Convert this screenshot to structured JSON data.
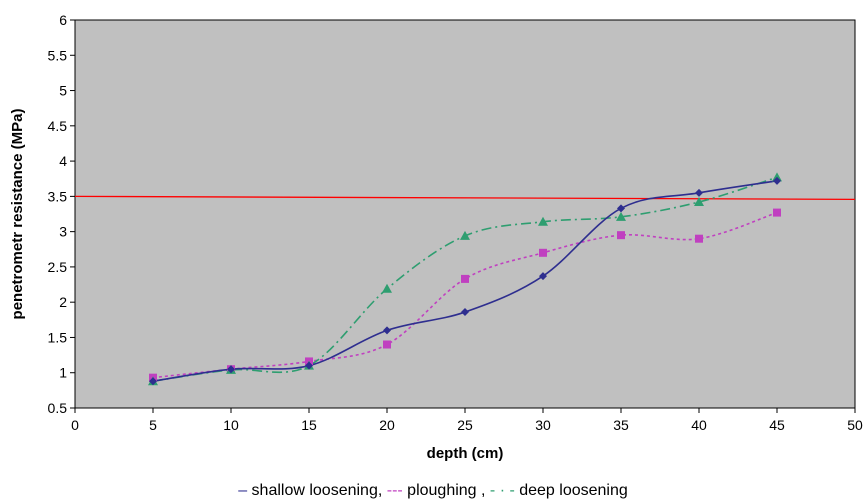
{
  "chart_data": {
    "type": "line",
    "title": "",
    "xlabel": "depth (cm)",
    "ylabel": "penetrometr resistance (MPa)",
    "xlim": [
      0,
      50
    ],
    "ylim": [
      0.5,
      6
    ],
    "xticks": [
      "0",
      "5",
      "10",
      "15",
      "20",
      "25",
      "30",
      "35",
      "40",
      "45",
      "50"
    ],
    "yticks": [
      "0.5",
      "1",
      "1.5",
      "2",
      "2.5",
      "3",
      "3.5",
      "4",
      "4.5",
      "5",
      "5.5",
      "6"
    ],
    "grid": false,
    "background": "#c0c0c0",
    "x": [
      5,
      10,
      15,
      20,
      25,
      30,
      35,
      40,
      45
    ],
    "series": [
      {
        "name": "shallow loosening",
        "color": "#2e2e8f",
        "marker": "diamond",
        "dash": "solid",
        "values": [
          0.88,
          1.05,
          1.1,
          1.6,
          1.86,
          2.37,
          3.33,
          3.55,
          3.72
        ]
      },
      {
        "name": "ploughing",
        "color": "#c040c0",
        "marker": "square",
        "dash": "dotted",
        "values": [
          0.93,
          1.05,
          1.16,
          1.4,
          2.33,
          2.7,
          2.95,
          2.9,
          3.27
        ]
      },
      {
        "name": "deep loosening",
        "color": "#2e9e70",
        "marker": "triangle",
        "dash": "dashdot",
        "values": [
          0.88,
          1.04,
          1.1,
          2.19,
          2.94,
          3.14,
          3.21,
          3.42,
          3.77
        ]
      }
    ],
    "reference_line": {
      "y": 3.5,
      "color": "#ff0000"
    },
    "legend": {
      "position": "bottom",
      "items": [
        {
          "symbol": "–",
          "text": "shallow loosening,"
        },
        {
          "symbol": "---",
          "text": "ploughing ,"
        },
        {
          "symbol": "- · -",
          "text": "deep loosening"
        }
      ]
    }
  }
}
